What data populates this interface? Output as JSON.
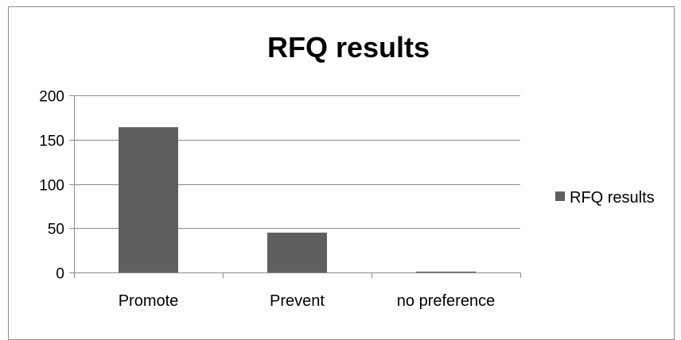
{
  "chart_data": {
    "type": "bar",
    "title": "RFQ results",
    "categories": [
      "Promote",
      "Prevent",
      "no preference"
    ],
    "series": [
      {
        "name": "RFQ results",
        "values": [
          164,
          45,
          1
        ],
        "color": "#5f5f5f"
      }
    ],
    "ylim": [
      0,
      200
    ],
    "yticks": [
      0,
      50,
      100,
      150,
      200
    ],
    "grid": true,
    "legend_position": "right"
  }
}
